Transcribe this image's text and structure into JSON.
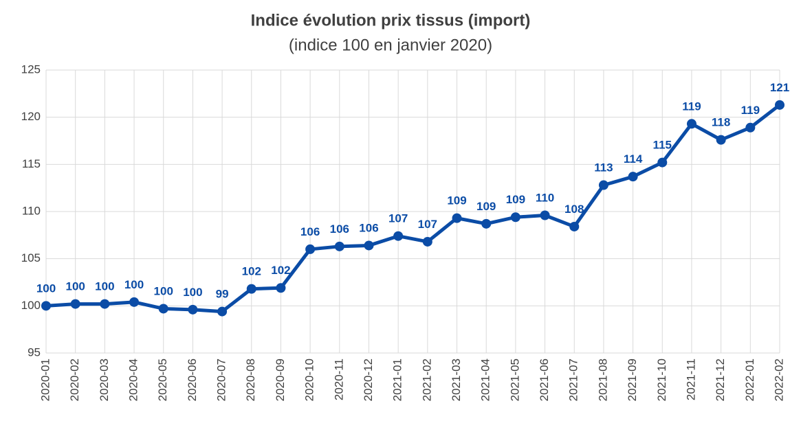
{
  "chart_data": {
    "type": "line",
    "title": "Indice évolution prix tissus (import)",
    "subtitle": "(indice 100 en janvier 2020)",
    "categories": [
      "2020-01",
      "2020-02",
      "2020-03",
      "2020-04",
      "2020-05",
      "2020-06",
      "2020-07",
      "2020-08",
      "2020-09",
      "2020-10",
      "2020-11",
      "2020-12",
      "2021-01",
      "2021-02",
      "2021-03",
      "2021-04",
      "2021-05",
      "2021-06",
      "2021-07",
      "2021-08",
      "2021-09",
      "2021-10",
      "2021-11",
      "2021-12",
      "2022-01",
      "2022-02"
    ],
    "series": [
      {
        "name": "Indice",
        "color": "#0b4ca6",
        "values": [
          100.0,
          100.2,
          100.2,
          100.4,
          99.7,
          99.6,
          99.4,
          101.8,
          101.9,
          106.0,
          106.3,
          106.4,
          107.4,
          106.8,
          109.3,
          108.7,
          109.4,
          109.6,
          108.4,
          112.8,
          113.7,
          115.2,
          119.3,
          117.6,
          118.9,
          121.3
        ],
        "value_labels": [
          "100",
          "100",
          "100",
          "100",
          "100",
          "100",
          "99",
          "102",
          "102",
          "106",
          "106",
          "106",
          "107",
          "107",
          "109",
          "109",
          "109",
          "110",
          "108",
          "113",
          "114",
          "115",
          "119",
          "118",
          "119",
          "121"
        ]
      }
    ],
    "ylim": [
      95,
      125
    ],
    "yticks": [
      95,
      100,
      105,
      110,
      115,
      120,
      125
    ],
    "grid": true
  }
}
